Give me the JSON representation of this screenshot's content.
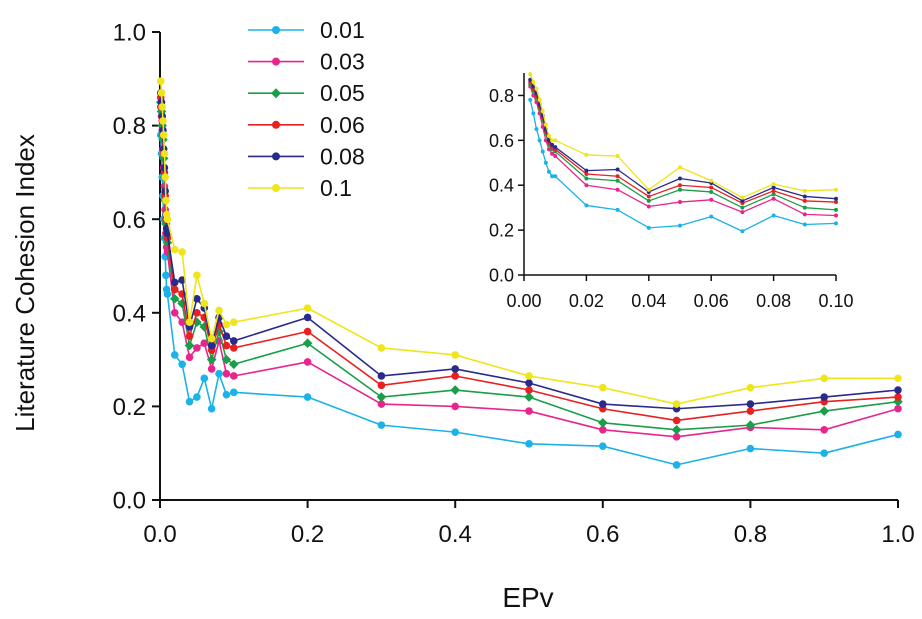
{
  "chart_data": [
    {
      "type": "line",
      "title": "",
      "xlabel": "EPv",
      "ylabel": "Literature Cohesion Index",
      "xlim": [
        0,
        1.0
      ],
      "ylim": [
        0,
        1.0
      ],
      "xticks": [
        "0.0",
        "0.2",
        "0.4",
        "0.6",
        "0.8",
        "1.0"
      ],
      "yticks": [
        "0.0",
        "0.2",
        "0.4",
        "0.6",
        "0.8",
        "1.0"
      ],
      "grid": false,
      "legend_position": "top-center",
      "x": [
        0.001,
        0.002,
        0.003,
        0.004,
        0.005,
        0.006,
        0.007,
        0.008,
        0.009,
        0.01,
        0.02,
        0.03,
        0.04,
        0.05,
        0.06,
        0.07,
        0.08,
        0.09,
        0.1,
        0.2,
        0.3,
        0.4,
        0.5,
        0.6,
        0.7,
        0.8,
        0.9,
        1.0
      ],
      "series": [
        {
          "name": "0.01",
          "color": "#1ab2e8",
          "marker": "circle",
          "values": [
            0.78,
            0.74,
            0.69,
            0.65,
            0.6,
            0.56,
            0.52,
            0.48,
            0.45,
            0.44,
            0.31,
            0.29,
            0.21,
            0.22,
            0.26,
            0.195,
            0.27,
            0.225,
            0.23,
            0.22,
            0.16,
            0.145,
            0.12,
            0.115,
            0.075,
            0.11,
            0.1,
            0.14
          ]
        },
        {
          "name": "0.03",
          "color": "#e8258c",
          "marker": "circle",
          "values": [
            0.84,
            0.82,
            0.79,
            0.75,
            0.71,
            0.67,
            0.62,
            0.57,
            0.54,
            0.53,
            0.4,
            0.38,
            0.305,
            0.325,
            0.335,
            0.28,
            0.34,
            0.27,
            0.265,
            0.295,
            0.205,
            0.2,
            0.19,
            0.15,
            0.135,
            0.155,
            0.15,
            0.195
          ]
        },
        {
          "name": "0.05",
          "color": "#1a9e4a",
          "marker": "diamond",
          "values": [
            0.85,
            0.83,
            0.8,
            0.77,
            0.73,
            0.69,
            0.64,
            0.59,
            0.56,
            0.55,
            0.43,
            0.42,
            0.33,
            0.38,
            0.37,
            0.3,
            0.36,
            0.3,
            0.29,
            0.335,
            0.22,
            0.235,
            0.22,
            0.165,
            0.15,
            0.16,
            0.19,
            0.21
          ]
        },
        {
          "name": "0.06",
          "color": "#e82020",
          "marker": "circle",
          "values": [
            0.86,
            0.84,
            0.81,
            0.78,
            0.74,
            0.7,
            0.65,
            0.6,
            0.57,
            0.56,
            0.45,
            0.44,
            0.35,
            0.4,
            0.39,
            0.32,
            0.375,
            0.33,
            0.325,
            0.36,
            0.245,
            0.265,
            0.235,
            0.195,
            0.17,
            0.19,
            0.21,
            0.22
          ]
        },
        {
          "name": "0.08",
          "color": "#2a2a8c",
          "marker": "circle",
          "values": [
            0.87,
            0.85,
            0.82,
            0.79,
            0.75,
            0.71,
            0.66,
            0.61,
            0.58,
            0.57,
            0.465,
            0.47,
            0.37,
            0.43,
            0.41,
            0.33,
            0.39,
            0.35,
            0.34,
            0.39,
            0.265,
            0.28,
            0.25,
            0.205,
            0.195,
            0.205,
            0.22,
            0.235
          ]
        },
        {
          "name": "0.1",
          "color": "#f0e41a",
          "marker": "circle",
          "values": [
            0.895,
            0.87,
            0.84,
            0.81,
            0.78,
            0.74,
            0.69,
            0.64,
            0.61,
            0.6,
            0.535,
            0.53,
            0.38,
            0.48,
            0.42,
            0.345,
            0.405,
            0.375,
            0.38,
            0.41,
            0.325,
            0.31,
            0.265,
            0.24,
            0.205,
            0.24,
            0.26,
            0.26
          ]
        }
      ]
    },
    {
      "type": "line",
      "title": "",
      "xlabel": "",
      "ylabel": "",
      "inset": true,
      "xlim": [
        0,
        0.1
      ],
      "ylim": [
        0,
        0.9
      ],
      "xticks": [
        "0.00",
        "0.02",
        "0.04",
        "0.06",
        "0.08",
        "0.10"
      ],
      "yticks": [
        "0.0",
        "0.2",
        "0.4",
        "0.6",
        "0.8"
      ],
      "grid": false,
      "x": [
        0.002,
        0.003,
        0.004,
        0.005,
        0.006,
        0.007,
        0.008,
        0.009,
        0.01,
        0.02,
        0.03,
        0.04,
        0.05,
        0.06,
        0.07,
        0.08,
        0.09,
        0.1
      ],
      "series": [
        {
          "color": "#1ab2e8",
          "values": [
            0.78,
            0.72,
            0.65,
            0.6,
            0.55,
            0.5,
            0.46,
            0.44,
            0.44,
            0.31,
            0.29,
            0.21,
            0.22,
            0.26,
            0.195,
            0.265,
            0.225,
            0.23
          ]
        },
        {
          "color": "#e8258c",
          "values": [
            0.84,
            0.8,
            0.77,
            0.72,
            0.66,
            0.6,
            0.56,
            0.54,
            0.53,
            0.4,
            0.38,
            0.305,
            0.325,
            0.335,
            0.28,
            0.34,
            0.27,
            0.265
          ]
        },
        {
          "color": "#1a9e4a",
          "values": [
            0.85,
            0.82,
            0.79,
            0.74,
            0.69,
            0.63,
            0.58,
            0.56,
            0.55,
            0.43,
            0.42,
            0.33,
            0.38,
            0.37,
            0.3,
            0.36,
            0.3,
            0.29
          ]
        },
        {
          "color": "#e82020",
          "values": [
            0.86,
            0.83,
            0.8,
            0.75,
            0.7,
            0.64,
            0.59,
            0.57,
            0.56,
            0.45,
            0.44,
            0.35,
            0.4,
            0.39,
            0.32,
            0.375,
            0.33,
            0.325
          ]
        },
        {
          "color": "#2a2a8c",
          "values": [
            0.87,
            0.84,
            0.81,
            0.76,
            0.71,
            0.65,
            0.6,
            0.58,
            0.57,
            0.465,
            0.47,
            0.37,
            0.43,
            0.41,
            0.33,
            0.39,
            0.35,
            0.34
          ]
        },
        {
          "color": "#f0e41a",
          "values": [
            0.895,
            0.86,
            0.83,
            0.78,
            0.73,
            0.67,
            0.62,
            0.6,
            0.6,
            0.535,
            0.53,
            0.38,
            0.48,
            0.42,
            0.345,
            0.405,
            0.375,
            0.38
          ]
        }
      ]
    }
  ]
}
